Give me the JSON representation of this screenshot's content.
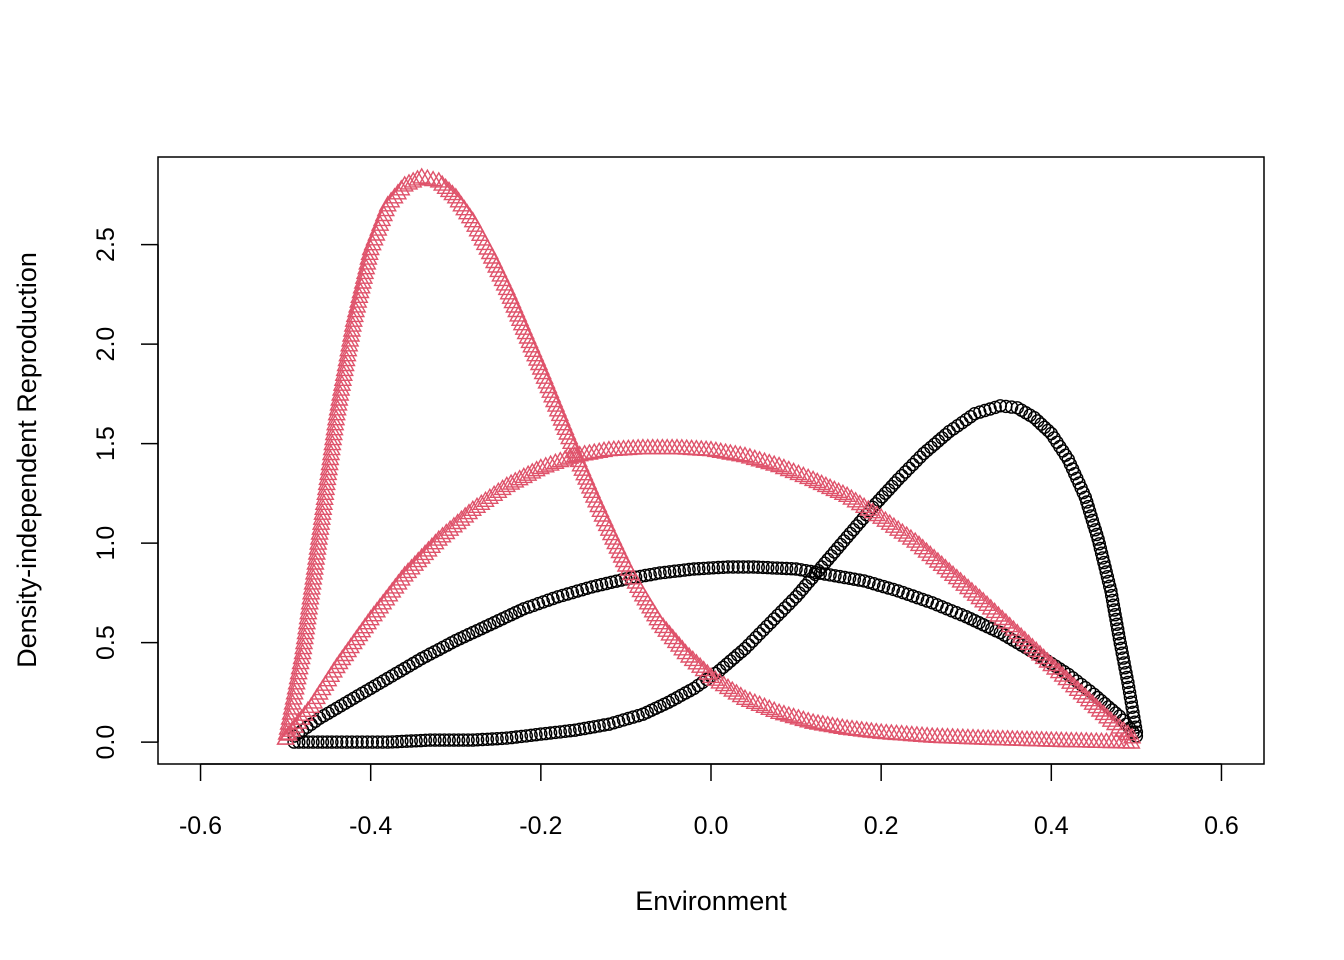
{
  "chart_data": {
    "type": "scatter",
    "title": "",
    "xlabel": "Environment",
    "ylabel": "Density-independent Reproduction",
    "xlim": [
      -0.65,
      0.65
    ],
    "ylim": [
      -0.11,
      2.94
    ],
    "x_ticks": [
      "-0.6",
      "-0.4",
      "-0.2",
      "0.0",
      "0.2",
      "0.4",
      "0.6"
    ],
    "y_ticks": [
      "0.0",
      "0.5",
      "1.0",
      "1.5",
      "2.0",
      "2.5"
    ],
    "grid": false,
    "legend": null,
    "series": [
      {
        "marker": "circle",
        "color": "#000000",
        "shape": "broad hump, peak near x=0.05, y=0.88",
        "points": [
          [
            -0.49,
            0.03
          ],
          [
            -0.46,
            0.12
          ],
          [
            -0.42,
            0.22
          ],
          [
            -0.38,
            0.32
          ],
          [
            -0.34,
            0.42
          ],
          [
            -0.3,
            0.51
          ],
          [
            -0.26,
            0.59
          ],
          [
            -0.22,
            0.67
          ],
          [
            -0.18,
            0.73
          ],
          [
            -0.14,
            0.78
          ],
          [
            -0.1,
            0.82
          ],
          [
            -0.06,
            0.85
          ],
          [
            -0.02,
            0.87
          ],
          [
            0.02,
            0.88
          ],
          [
            0.05,
            0.88
          ],
          [
            0.1,
            0.87
          ],
          [
            0.14,
            0.84
          ],
          [
            0.18,
            0.81
          ],
          [
            0.22,
            0.76
          ],
          [
            0.26,
            0.7
          ],
          [
            0.3,
            0.63
          ],
          [
            0.34,
            0.55
          ],
          [
            0.38,
            0.45
          ],
          [
            0.42,
            0.34
          ],
          [
            0.45,
            0.24
          ],
          [
            0.48,
            0.13
          ],
          [
            0.5,
            0.03
          ]
        ]
      },
      {
        "marker": "circle",
        "color": "#000000",
        "shape": "skewed hump, peak near x=0.34, y=1.69",
        "points": [
          [
            -0.49,
            0.0
          ],
          [
            -0.44,
            0.0
          ],
          [
            -0.38,
            0.0
          ],
          [
            -0.33,
            0.01
          ],
          [
            -0.28,
            0.01
          ],
          [
            -0.24,
            0.02
          ],
          [
            -0.2,
            0.04
          ],
          [
            -0.16,
            0.06
          ],
          [
            -0.12,
            0.09
          ],
          [
            -0.08,
            0.14
          ],
          [
            -0.05,
            0.2
          ],
          [
            -0.02,
            0.27
          ],
          [
            0.01,
            0.36
          ],
          [
            0.04,
            0.47
          ],
          [
            0.07,
            0.6
          ],
          [
            0.1,
            0.73
          ],
          [
            0.13,
            0.88
          ],
          [
            0.16,
            1.03
          ],
          [
            0.19,
            1.18
          ],
          [
            0.22,
            1.32
          ],
          [
            0.25,
            1.45
          ],
          [
            0.28,
            1.56
          ],
          [
            0.31,
            1.65
          ],
          [
            0.34,
            1.69
          ],
          [
            0.36,
            1.68
          ],
          [
            0.38,
            1.63
          ],
          [
            0.4,
            1.55
          ],
          [
            0.42,
            1.42
          ],
          [
            0.44,
            1.23
          ],
          [
            0.455,
            1.02
          ],
          [
            0.47,
            0.76
          ],
          [
            0.48,
            0.52
          ],
          [
            0.49,
            0.3
          ],
          [
            0.5,
            0.05
          ]
        ]
      },
      {
        "marker": "triangle",
        "color": "#DF536B",
        "shape": "broad hump, peak near x=-0.05, y=1.48",
        "points": [
          [
            -0.5,
            0.02
          ],
          [
            -0.47,
            0.18
          ],
          [
            -0.44,
            0.38
          ],
          [
            -0.4,
            0.62
          ],
          [
            -0.36,
            0.84
          ],
          [
            -0.32,
            1.02
          ],
          [
            -0.28,
            1.17
          ],
          [
            -0.24,
            1.29
          ],
          [
            -0.2,
            1.38
          ],
          [
            -0.16,
            1.44
          ],
          [
            -0.12,
            1.47
          ],
          [
            -0.08,
            1.48
          ],
          [
            -0.04,
            1.48
          ],
          [
            0.0,
            1.47
          ],
          [
            0.04,
            1.44
          ],
          [
            0.08,
            1.39
          ],
          [
            0.12,
            1.32
          ],
          [
            0.16,
            1.24
          ],
          [
            0.2,
            1.13
          ],
          [
            0.24,
            1.01
          ],
          [
            0.28,
            0.86
          ],
          [
            0.32,
            0.71
          ],
          [
            0.36,
            0.55
          ],
          [
            0.4,
            0.39
          ],
          [
            0.44,
            0.23
          ],
          [
            0.47,
            0.11
          ],
          [
            0.5,
            0.01
          ]
        ]
      },
      {
        "marker": "triangle",
        "color": "#DF536B",
        "shape": "skewed hump, peak near x=-0.34, y=2.84",
        "points": [
          [
            -0.5,
            0.02
          ],
          [
            -0.48,
            0.45
          ],
          [
            -0.46,
            1.05
          ],
          [
            -0.44,
            1.65
          ],
          [
            -0.42,
            2.12
          ],
          [
            -0.4,
            2.48
          ],
          [
            -0.38,
            2.7
          ],
          [
            -0.36,
            2.8
          ],
          [
            -0.34,
            2.84
          ],
          [
            -0.32,
            2.82
          ],
          [
            -0.3,
            2.74
          ],
          [
            -0.28,
            2.62
          ],
          [
            -0.26,
            2.46
          ],
          [
            -0.24,
            2.28
          ],
          [
            -0.22,
            2.08
          ],
          [
            -0.2,
            1.88
          ],
          [
            -0.18,
            1.67
          ],
          [
            -0.16,
            1.46
          ],
          [
            -0.14,
            1.26
          ],
          [
            -0.12,
            1.07
          ],
          [
            -0.1,
            0.89
          ],
          [
            -0.08,
            0.74
          ],
          [
            -0.06,
            0.6
          ],
          [
            -0.03,
            0.45
          ],
          [
            0.0,
            0.33
          ],
          [
            0.04,
            0.22
          ],
          [
            0.08,
            0.15
          ],
          [
            0.12,
            0.1
          ],
          [
            0.16,
            0.07
          ],
          [
            0.2,
            0.05
          ],
          [
            0.26,
            0.03
          ],
          [
            0.32,
            0.02
          ],
          [
            0.4,
            0.01
          ],
          [
            0.5,
            0.0
          ]
        ]
      }
    ]
  }
}
